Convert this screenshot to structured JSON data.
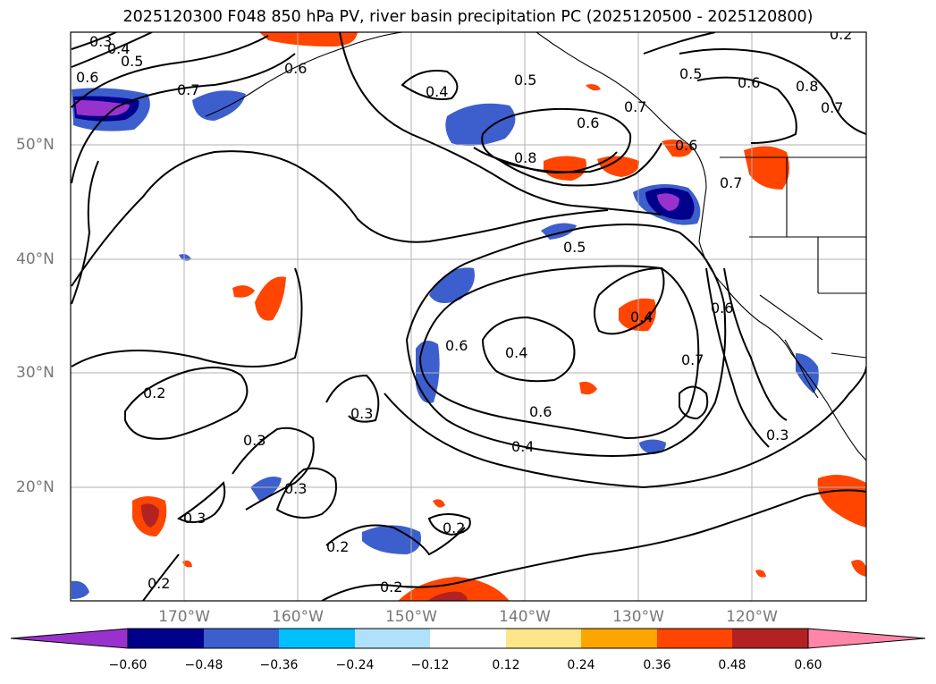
{
  "title": "2025120300 F048 850 hPa PV, river basin precipitation PC (2025120500 - 2025120800)",
  "lat_labels": [
    "50°N",
    "40°N",
    "30°N",
    "20°N"
  ],
  "lon_labels": [
    "170°W",
    "160°W",
    "150°W",
    "140°W",
    "130°W",
    "120°W"
  ],
  "contour_labels": [
    "0.3",
    "0.4",
    "0.5",
    "0.6",
    "0.7",
    "0.6",
    "0.4",
    "0.5",
    "0.6",
    "0.8",
    "0.7",
    "0.5",
    "0.6",
    "0.8",
    "0.7",
    "0.7",
    "0.6",
    "0.5",
    "0.6",
    "0.4",
    "0.4",
    "0.7",
    "0.6",
    "0.4",
    "0.6",
    "0.2",
    "0.3",
    "0.3",
    "0.3",
    "0.2",
    "0.3",
    "0.2",
    "0.2",
    "0.2",
    "0.3",
    "0.2"
  ],
  "colorbar": {
    "tick_labels": [
      "−0.60",
      "−0.48",
      "−0.36",
      "−0.24",
      "−0.12",
      "0.12",
      "0.24",
      "0.36",
      "0.48",
      "0.60"
    ],
    "colors": [
      "#9932cc",
      "#00008b",
      "#3c5fcd",
      "#00bfff",
      "#afe1fa",
      "#ffffff",
      "#fde68a",
      "#ffa500",
      "#ff4500",
      "#b22222",
      "#ff85a9"
    ]
  }
}
